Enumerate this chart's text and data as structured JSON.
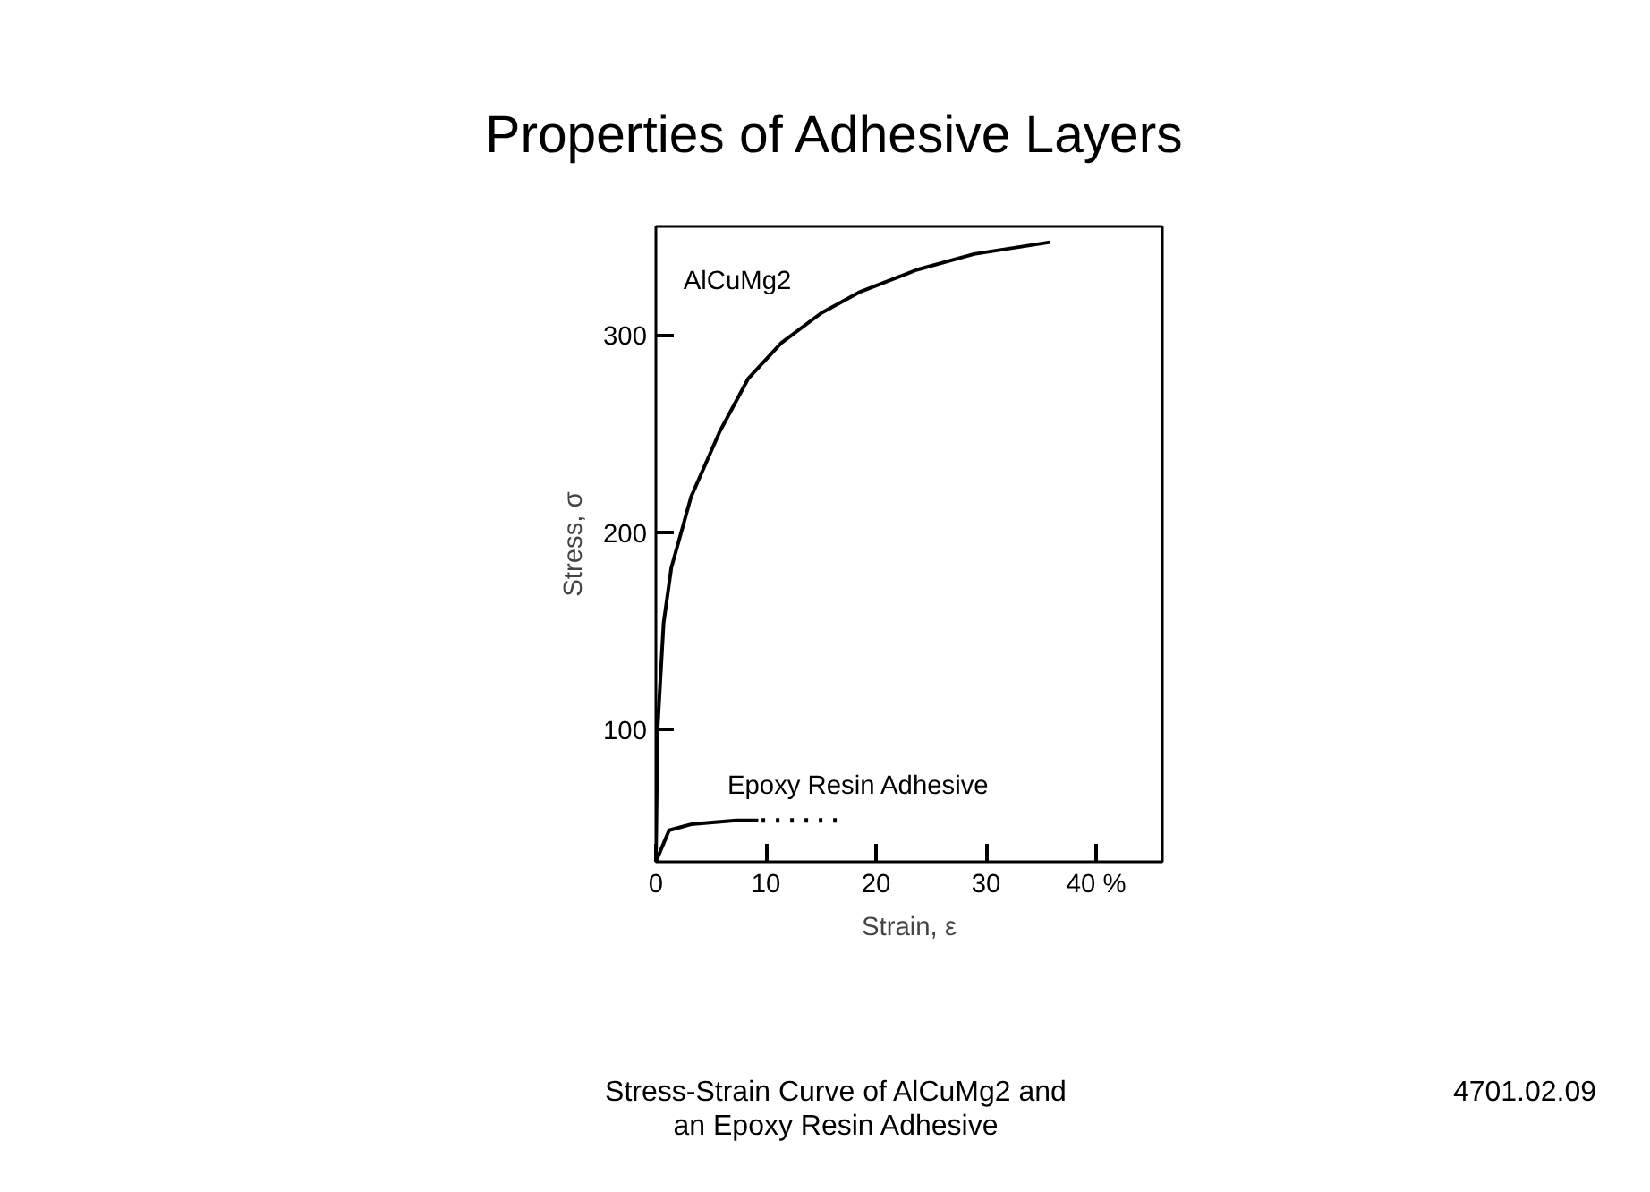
{
  "chart_data": {
    "type": "line",
    "title": "Properties of Adhesive Layers",
    "xlabel": "Strain, ε",
    "ylabel": "Stress, σ",
    "xlim": [
      0,
      46
    ],
    "ylim": [
      33,
      355
    ],
    "xticks": [
      0,
      10,
      20,
      30,
      {
        "value": 40,
        "label": "40 %"
      }
    ],
    "yticks": [
      100,
      200,
      300
    ],
    "grid": false,
    "legend": false,
    "line_style": "solid",
    "marker": "none",
    "annotations": [
      "Stress-Strain Curve of AlCuMg2 and an Epoxy Resin Adhesive",
      "4701.02.09"
    ],
    "series": [
      {
        "name": "AlCuMg2",
        "color": "#000000",
        "x": [
          0,
          0.15,
          0.7,
          1.4,
          3.2,
          5.8,
          8.4,
          11.4,
          15,
          18.6,
          23.7,
          28.9,
          35.8
        ],
        "values": [
          33,
          100,
          154,
          182,
          218,
          251,
          278,
          296,
          311,
          322,
          333,
          341,
          347
        ]
      },
      {
        "name": "Epoxy Resin Adhesive",
        "color": "#000000",
        "x": [
          0,
          1.2,
          3.2,
          7.3,
          9.3
        ],
        "values": [
          33,
          49,
          52,
          54,
          54
        ]
      },
      {
        "color": "#000000",
        "line_style": "dotted",
        "x": [
          9.6,
          16.8
        ],
        "values": [
          54,
          54
        ]
      }
    ]
  }
}
